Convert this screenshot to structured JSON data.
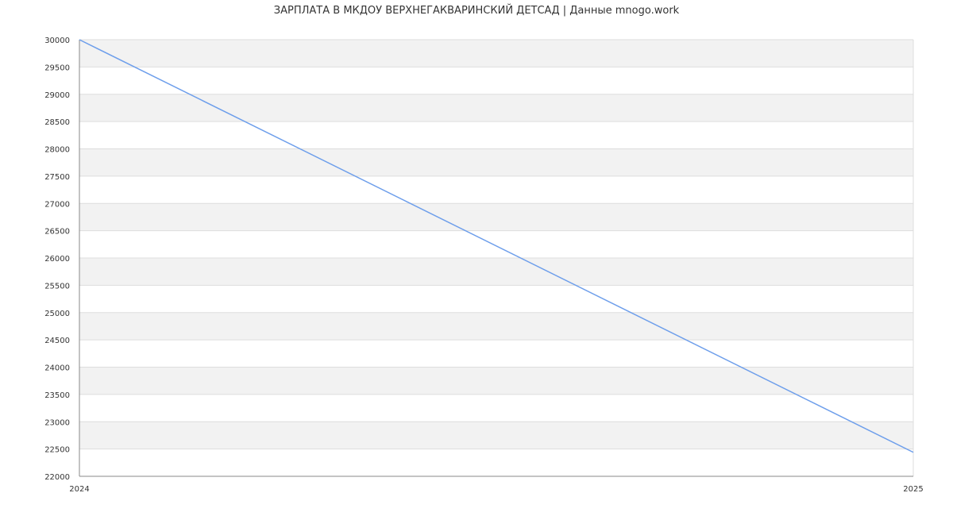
{
  "chart_data": {
    "type": "line",
    "title": "ЗАРПЛАТА В МКДОУ ВЕРХНЕГАКВАРИНСКИЙ ДЕТСАД | Данные mnogo.work",
    "x": [
      "2024",
      "2025"
    ],
    "series": [
      {
        "values": [
          30000,
          22440
        ]
      }
    ],
    "ylim": [
      22000,
      30000
    ],
    "yticks": [
      22000,
      22500,
      23000,
      23500,
      24000,
      24500,
      25000,
      25500,
      26000,
      26500,
      27000,
      27500,
      28000,
      28500,
      29000,
      29500,
      30000
    ],
    "grid": true,
    "legend": "none",
    "colors": {
      "line": "#6d9eeb",
      "band": "#f2f2f2",
      "grid": "#dddddd",
      "axis": "#888888"
    }
  }
}
